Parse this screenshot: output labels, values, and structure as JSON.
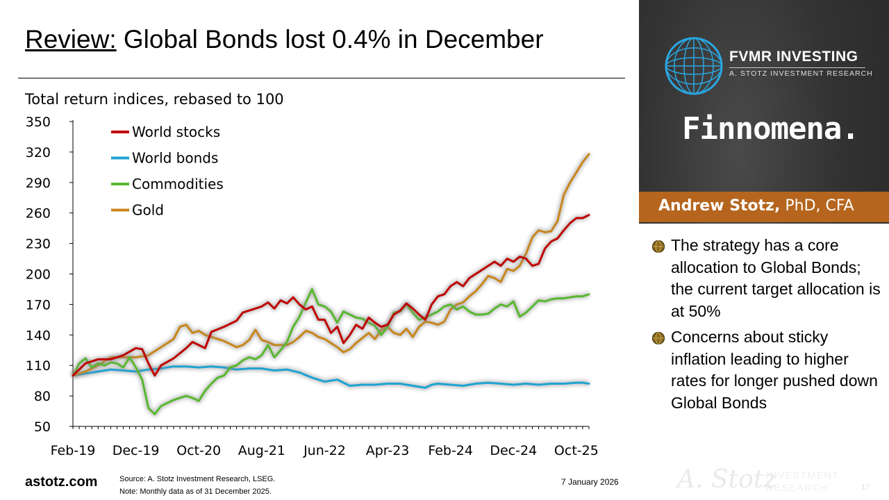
{
  "slide": {
    "title_prefix": "Review:",
    "title_rest": " Global Bonds lost 0.4% in December",
    "brand": "astotz.com",
    "source_line1": "Source: A. Stotz Investment Research, LSEG.",
    "source_line2": "Note: Monthly data as of 31 December 2025.",
    "date": "7 January 2026",
    "page_number": "17"
  },
  "sidebar": {
    "fvmr_name": "FVMR INVESTING",
    "fvmr_sub": "A. STOTZ INVESTMENT RESEARCH",
    "finnomena": "Finnomena.",
    "author_name": "Andrew Stotz,",
    "author_creds": " PhD, CFA",
    "bullets": [
      "The strategy has a core allocation to Global Bonds; the current target allocation is at 50%",
      "Concerns about sticky inflation leading to higher rates for longer pushed down Global Bonds"
    ],
    "signature": "A. Stotz",
    "investment_line1": "INVESTMENT",
    "investment_line2": "RESEARCH"
  },
  "colors": {
    "stocks": "#c00000",
    "bonds": "#1ea3d3",
    "commodities": "#58b82e",
    "gold": "#c8861b",
    "band": "#b5651d"
  },
  "chart_data": {
    "type": "line",
    "title": "Total return indices, rebased to 100",
    "xlabel": "",
    "ylabel": "",
    "ylim": [
      50,
      350
    ],
    "yticks": [
      50,
      80,
      110,
      140,
      170,
      200,
      230,
      260,
      290,
      320,
      350
    ],
    "xtick_labels": [
      "Feb-19",
      "Dec-19",
      "Oct-20",
      "Aug-21",
      "Jun-22",
      "Apr-23",
      "Feb-24",
      "Dec-24",
      "Oct-25"
    ],
    "xtick_index": [
      0,
      10,
      20,
      30,
      40,
      50,
      60,
      70,
      80
    ],
    "x_start_index": 0,
    "x_end_index": 82,
    "series": [
      {
        "name": "World stocks",
        "color_key": "stocks",
        "points": [
          [
            0,
            100
          ],
          [
            2,
            112
          ],
          [
            4,
            116
          ],
          [
            6,
            116
          ],
          [
            8,
            120
          ],
          [
            10,
            127
          ],
          [
            11,
            126
          ],
          [
            12,
            112
          ],
          [
            13,
            100
          ],
          [
            14,
            110
          ],
          [
            16,
            117
          ],
          [
            18,
            127
          ],
          [
            19,
            133
          ],
          [
            20,
            130
          ],
          [
            21,
            127
          ],
          [
            22,
            143
          ],
          [
            24,
            148
          ],
          [
            26,
            154
          ],
          [
            27,
            162
          ],
          [
            29,
            166
          ],
          [
            30,
            168
          ],
          [
            31,
            172
          ],
          [
            32,
            166
          ],
          [
            33,
            174
          ],
          [
            34,
            171
          ],
          [
            35,
            177
          ],
          [
            36,
            170
          ],
          [
            37,
            165
          ],
          [
            38,
            168
          ],
          [
            39,
            155
          ],
          [
            40,
            155
          ],
          [
            41,
            142
          ],
          [
            42,
            148
          ],
          [
            43,
            132
          ],
          [
            44,
            140
          ],
          [
            45,
            150
          ],
          [
            46,
            146
          ],
          [
            47,
            157
          ],
          [
            48,
            152
          ],
          [
            49,
            148
          ],
          [
            50,
            150
          ],
          [
            51,
            160
          ],
          [
            52,
            164
          ],
          [
            53,
            171
          ],
          [
            54,
            166
          ],
          [
            55,
            160
          ],
          [
            56,
            155
          ],
          [
            57,
            170
          ],
          [
            58,
            178
          ],
          [
            59,
            180
          ],
          [
            60,
            188
          ],
          [
            61,
            192
          ],
          [
            62,
            188
          ],
          [
            63,
            196
          ],
          [
            64,
            200
          ],
          [
            65,
            204
          ],
          [
            66,
            208
          ],
          [
            67,
            212
          ],
          [
            68,
            208
          ],
          [
            69,
            215
          ],
          [
            70,
            212
          ],
          [
            71,
            217
          ],
          [
            72,
            215
          ],
          [
            73,
            208
          ],
          [
            74,
            210
          ],
          [
            75,
            225
          ],
          [
            76,
            232
          ],
          [
            77,
            235
          ],
          [
            78,
            243
          ],
          [
            79,
            250
          ],
          [
            80,
            255
          ],
          [
            81,
            255
          ],
          [
            82,
            258
          ]
        ]
      },
      {
        "name": "World bonds",
        "color_key": "bonds",
        "points": [
          [
            0,
            100
          ],
          [
            2,
            102
          ],
          [
            4,
            104
          ],
          [
            6,
            106
          ],
          [
            8,
            105
          ],
          [
            10,
            104
          ],
          [
            12,
            106
          ],
          [
            14,
            107
          ],
          [
            16,
            109
          ],
          [
            18,
            109
          ],
          [
            20,
            108
          ],
          [
            22,
            109
          ],
          [
            24,
            108
          ],
          [
            26,
            106
          ],
          [
            28,
            107
          ],
          [
            30,
            107
          ],
          [
            32,
            105
          ],
          [
            34,
            106
          ],
          [
            36,
            103
          ],
          [
            38,
            98
          ],
          [
            40,
            94
          ],
          [
            42,
            96
          ],
          [
            44,
            90
          ],
          [
            46,
            91
          ],
          [
            48,
            91
          ],
          [
            50,
            92
          ],
          [
            52,
            92
          ],
          [
            54,
            90
          ],
          [
            56,
            88
          ],
          [
            57,
            91
          ],
          [
            58,
            92
          ],
          [
            60,
            91
          ],
          [
            62,
            90
          ],
          [
            64,
            92
          ],
          [
            66,
            93
          ],
          [
            68,
            92
          ],
          [
            70,
            91
          ],
          [
            72,
            92
          ],
          [
            74,
            91
          ],
          [
            76,
            92
          ],
          [
            78,
            92
          ],
          [
            80,
            93
          ],
          [
            81,
            93
          ],
          [
            82,
            92
          ]
        ]
      },
      {
        "name": "Commodities",
        "color_key": "commodities",
        "points": [
          [
            0,
            100
          ],
          [
            1,
            112
          ],
          [
            2,
            117
          ],
          [
            3,
            108
          ],
          [
            4,
            112
          ],
          [
            5,
            110
          ],
          [
            6,
            113
          ],
          [
            7,
            112
          ],
          [
            8,
            108
          ],
          [
            9,
            118
          ],
          [
            10,
            108
          ],
          [
            11,
            96
          ],
          [
            12,
            68
          ],
          [
            13,
            62
          ],
          [
            14,
            70
          ],
          [
            16,
            76
          ],
          [
            18,
            80
          ],
          [
            19,
            78
          ],
          [
            20,
            75
          ],
          [
            21,
            85
          ],
          [
            22,
            92
          ],
          [
            23,
            98
          ],
          [
            24,
            100
          ],
          [
            25,
            108
          ],
          [
            26,
            110
          ],
          [
            27,
            115
          ],
          [
            28,
            118
          ],
          [
            29,
            116
          ],
          [
            30,
            120
          ],
          [
            31,
            130
          ],
          [
            32,
            118
          ],
          [
            33,
            125
          ],
          [
            34,
            133
          ],
          [
            35,
            148
          ],
          [
            36,
            158
          ],
          [
            37,
            172
          ],
          [
            38,
            185
          ],
          [
            39,
            170
          ],
          [
            40,
            168
          ],
          [
            41,
            163
          ],
          [
            42,
            152
          ],
          [
            43,
            163
          ],
          [
            44,
            160
          ],
          [
            45,
            157
          ],
          [
            46,
            156
          ],
          [
            47,
            152
          ],
          [
            48,
            149
          ],
          [
            49,
            140
          ],
          [
            50,
            148
          ],
          [
            51,
            162
          ],
          [
            52,
            163
          ],
          [
            53,
            170
          ],
          [
            54,
            162
          ],
          [
            55,
            155
          ],
          [
            56,
            157
          ],
          [
            57,
            160
          ],
          [
            58,
            163
          ],
          [
            59,
            168
          ],
          [
            60,
            170
          ],
          [
            61,
            165
          ],
          [
            62,
            168
          ],
          [
            63,
            163
          ],
          [
            64,
            160
          ],
          [
            65,
            160
          ],
          [
            66,
            161
          ],
          [
            67,
            166
          ],
          [
            68,
            170
          ],
          [
            69,
            168
          ],
          [
            70,
            173
          ],
          [
            71,
            158
          ],
          [
            72,
            162
          ],
          [
            73,
            168
          ],
          [
            74,
            174
          ],
          [
            75,
            173
          ],
          [
            76,
            175
          ],
          [
            77,
            176
          ],
          [
            78,
            176
          ],
          [
            79,
            177
          ],
          [
            80,
            178
          ],
          [
            81,
            178
          ],
          [
            82,
            180
          ]
        ]
      },
      {
        "name": "Gold",
        "color_key": "gold",
        "points": [
          [
            0,
            100
          ],
          [
            2,
            104
          ],
          [
            4,
            110
          ],
          [
            6,
            118
          ],
          [
            8,
            118
          ],
          [
            10,
            118
          ],
          [
            12,
            120
          ],
          [
            14,
            128
          ],
          [
            16,
            136
          ],
          [
            17,
            148
          ],
          [
            18,
            150
          ],
          [
            19,
            142
          ],
          [
            20,
            144
          ],
          [
            21,
            140
          ],
          [
            22,
            138
          ],
          [
            24,
            134
          ],
          [
            26,
            128
          ],
          [
            27,
            130
          ],
          [
            28,
            135
          ],
          [
            29,
            145
          ],
          [
            30,
            135
          ],
          [
            31,
            133
          ],
          [
            32,
            130
          ],
          [
            34,
            130
          ],
          [
            35,
            133
          ],
          [
            36,
            138
          ],
          [
            37,
            144
          ],
          [
            38,
            142
          ],
          [
            39,
            138
          ],
          [
            40,
            136
          ],
          [
            41,
            132
          ],
          [
            42,
            128
          ],
          [
            43,
            123
          ],
          [
            44,
            126
          ],
          [
            45,
            132
          ],
          [
            46,
            137
          ],
          [
            47,
            142
          ],
          [
            48,
            136
          ],
          [
            49,
            145
          ],
          [
            50,
            148
          ],
          [
            51,
            142
          ],
          [
            52,
            140
          ],
          [
            53,
            146
          ],
          [
            54,
            138
          ],
          [
            55,
            148
          ],
          [
            56,
            153
          ],
          [
            57,
            152
          ],
          [
            58,
            150
          ],
          [
            59,
            153
          ],
          [
            60,
            165
          ],
          [
            61,
            170
          ],
          [
            62,
            172
          ],
          [
            63,
            178
          ],
          [
            64,
            183
          ],
          [
            65,
            190
          ],
          [
            66,
            198
          ],
          [
            67,
            196
          ],
          [
            68,
            192
          ],
          [
            69,
            205
          ],
          [
            70,
            203
          ],
          [
            71,
            208
          ],
          [
            72,
            220
          ],
          [
            73,
            236
          ],
          [
            74,
            243
          ],
          [
            75,
            241
          ],
          [
            76,
            242
          ],
          [
            77,
            252
          ],
          [
            78,
            278
          ],
          [
            79,
            290
          ],
          [
            80,
            300
          ],
          [
            81,
            310
          ],
          [
            82,
            318
          ]
        ]
      }
    ]
  }
}
